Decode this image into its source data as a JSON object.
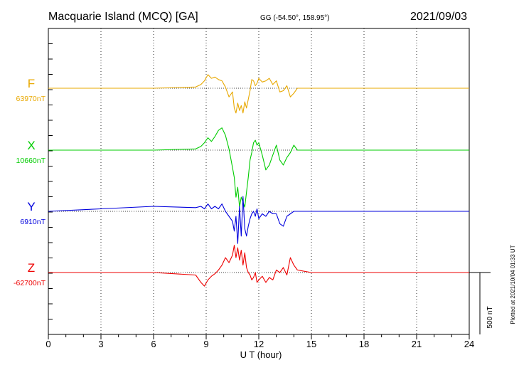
{
  "header": {
    "station": "Macquarie Island (MCQ)  [GA]",
    "coords": "GG (-54.50°, 158.95°)",
    "date": "2021/09/03"
  },
  "footer": {
    "plotted": "Plotted at 2021/10/04 01:33 UT",
    "scale_label": "500 nT"
  },
  "chart_data": {
    "type": "line",
    "xlabel": "U T (hour)",
    "xlim": [
      0,
      24
    ],
    "xticks": [
      0,
      3,
      6,
      9,
      12,
      15,
      18,
      21,
      24
    ],
    "grid": true,
    "scale_bar_nT": 500,
    "series": [
      {
        "name": "F",
        "baseline": "63970nT",
        "color": "#E8A800",
        "x": [
          0,
          3,
          6,
          8.4,
          8.7,
          8.9,
          9.1,
          9.3,
          9.5,
          9.7,
          9.9,
          10.1,
          10.3,
          10.5,
          10.6,
          10.7,
          10.8,
          10.9,
          11.0,
          11.1,
          11.2,
          11.3,
          11.4,
          11.5,
          11.6,
          11.7,
          11.8,
          11.9,
          12.0,
          12.2,
          12.4,
          12.6,
          12.8,
          13.0,
          13.2,
          13.4,
          13.6,
          13.8,
          14.0,
          14.2,
          15,
          18,
          21,
          24
        ],
        "y": [
          0,
          0,
          0,
          10,
          30,
          60,
          110,
          80,
          90,
          70,
          60,
          10,
          -70,
          -30,
          -160,
          -200,
          -120,
          -180,
          -140,
          -200,
          -110,
          -160,
          -90,
          -20,
          70,
          60,
          20,
          40,
          80,
          50,
          60,
          80,
          30,
          60,
          -30,
          -20,
          20,
          -70,
          -40,
          0,
          0,
          0,
          0,
          0
        ]
      },
      {
        "name": "X",
        "baseline": "10660nT",
        "color": "#00CC00",
        "x": [
          0,
          3,
          6,
          8.4,
          8.7,
          8.9,
          9.1,
          9.3,
          9.5,
          9.7,
          9.9,
          10.1,
          10.3,
          10.5,
          10.6,
          10.7,
          10.8,
          10.9,
          11.0,
          11.1,
          11.2,
          11.3,
          11.4,
          11.5,
          11.6,
          11.7,
          11.8,
          11.9,
          12.0,
          12.2,
          12.4,
          12.6,
          12.8,
          13.0,
          13.2,
          13.4,
          13.6,
          13.8,
          14.0,
          14.2,
          15,
          18,
          21,
          24
        ],
        "y": [
          0,
          0,
          0,
          10,
          30,
          60,
          100,
          70,
          110,
          160,
          180,
          120,
          10,
          -140,
          -220,
          -380,
          -300,
          -460,
          -380,
          -420,
          -460,
          -340,
          -220,
          -80,
          -20,
          60,
          80,
          40,
          60,
          -40,
          -160,
          -120,
          -40,
          40,
          -80,
          -120,
          -60,
          -20,
          40,
          0,
          0,
          0,
          0,
          0
        ]
      },
      {
        "name": "Y",
        "baseline": "6910nT",
        "color": "#0000DD",
        "x": [
          0,
          3,
          6,
          8.4,
          8.7,
          8.9,
          9.1,
          9.3,
          9.5,
          9.7,
          9.9,
          10.1,
          10.3,
          10.5,
          10.6,
          10.7,
          10.8,
          10.9,
          11.0,
          11.1,
          11.2,
          11.3,
          11.4,
          11.5,
          11.6,
          11.7,
          11.8,
          11.9,
          12.0,
          12.2,
          12.4,
          12.6,
          12.8,
          13.0,
          13.2,
          13.4,
          13.6,
          13.8,
          14.0,
          14.2,
          15,
          18,
          21,
          24
        ],
        "y": [
          0,
          20,
          40,
          30,
          40,
          20,
          60,
          20,
          40,
          20,
          60,
          0,
          -40,
          -80,
          -160,
          -40,
          -260,
          40,
          -200,
          120,
          -140,
          -200,
          -120,
          -60,
          -20,
          0,
          -40,
          20,
          -60,
          -20,
          -40,
          0,
          -20,
          -20,
          -100,
          -120,
          -40,
          -20,
          0,
          0,
          0,
          0,
          0,
          0
        ]
      },
      {
        "name": "Z",
        "baseline": "-62700nT",
        "color": "#EE0000",
        "x": [
          0,
          3,
          6,
          8.4,
          8.7,
          8.9,
          9.1,
          9.3,
          9.5,
          9.7,
          9.9,
          10.1,
          10.3,
          10.5,
          10.6,
          10.7,
          10.8,
          10.9,
          11.0,
          11.1,
          11.2,
          11.3,
          11.4,
          11.5,
          11.6,
          11.7,
          11.8,
          11.9,
          12.0,
          12.2,
          12.4,
          12.6,
          12.8,
          13.0,
          13.2,
          13.4,
          13.6,
          13.8,
          14.0,
          14.2,
          15,
          18,
          21,
          24
        ],
        "y": [
          0,
          0,
          0,
          -20,
          -80,
          -110,
          -60,
          -30,
          -10,
          20,
          60,
          120,
          80,
          140,
          220,
          120,
          200,
          100,
          180,
          60,
          160,
          40,
          0,
          -20,
          -60,
          -40,
          0,
          -80,
          -60,
          -30,
          -80,
          -40,
          -60,
          20,
          0,
          40,
          -20,
          120,
          60,
          20,
          0,
          0,
          0,
          0
        ]
      }
    ]
  }
}
